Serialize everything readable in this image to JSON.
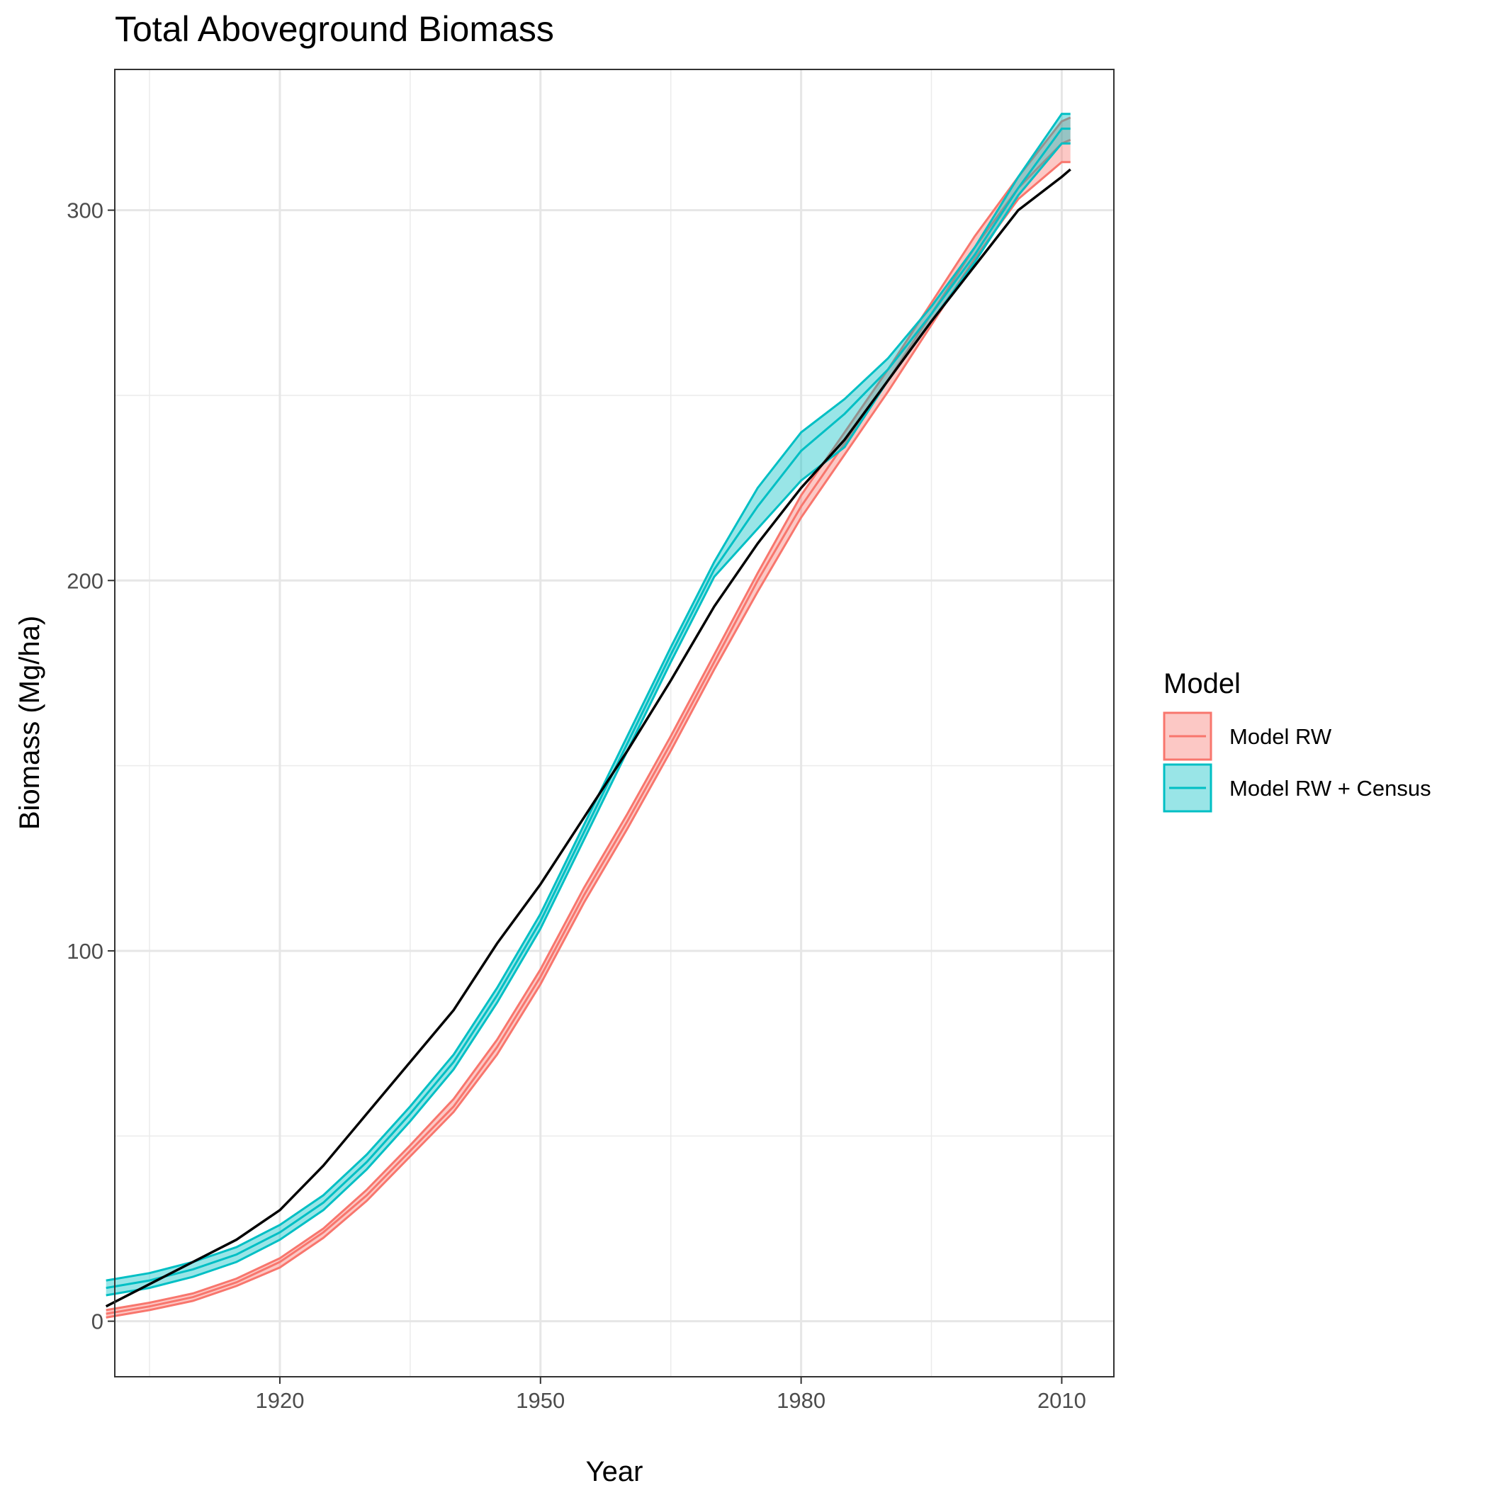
{
  "chart_data": {
    "type": "area",
    "title": "Total Aboveground Biomass",
    "xlabel": "Year",
    "ylabel": "Biomass (Mg/ha)",
    "xlim": [
      1901,
      2016
    ],
    "ylim": [
      -15,
      338
    ],
    "x_ticks": [
      1920,
      1950,
      1980,
      2010
    ],
    "x_minor_ticks": [
      1905,
      1935,
      1965,
      1995
    ],
    "y_ticks": [
      0,
      100,
      200,
      300
    ],
    "y_minor_ticks": [
      50,
      150,
      250
    ],
    "grid": true,
    "legend_title": "Model",
    "legend_position": "right",
    "x": [
      1900,
      1905,
      1910,
      1915,
      1920,
      1925,
      1930,
      1935,
      1940,
      1945,
      1950,
      1955,
      1960,
      1965,
      1970,
      1975,
      1980,
      1985,
      1990,
      1995,
      2000,
      2005,
      2010,
      2011
    ],
    "series": [
      {
        "name": "Model RW",
        "color": "#F8766D",
        "fill": "#F8766D",
        "mean": [
          2,
          4,
          6.5,
          10.5,
          16,
          24,
          34,
          46,
          58,
          74,
          93,
          115,
          135,
          156,
          178,
          200,
          220,
          237,
          254,
          272,
          290,
          306,
          318,
          319
        ],
        "lower": [
          1,
          3,
          5.5,
          9.5,
          14.5,
          22.5,
          32.5,
          44.5,
          56.5,
          72,
          91,
          113,
          133,
          154,
          176,
          197,
          217,
          234,
          251,
          269,
          287,
          303,
          313,
          313
        ],
        "upper": [
          3,
          5,
          7.5,
          11.5,
          17,
          25,
          35.5,
          47.5,
          60,
          76,
          95,
          117,
          137,
          158,
          180,
          202,
          223,
          240,
          257,
          275,
          293,
          309,
          324,
          325
        ]
      },
      {
        "name": "Model RW + Census",
        "color": "#00BFC4",
        "fill": "#00BFC4",
        "mean": [
          9,
          11,
          14,
          18,
          24,
          32,
          43,
          56,
          70,
          88,
          108,
          132,
          156,
          180,
          203,
          220,
          235,
          245,
          257,
          272,
          288,
          306,
          322,
          322
        ],
        "lower": [
          7,
          9,
          12,
          16,
          22,
          30,
          41,
          54,
          68,
          86,
          106,
          130,
          154,
          178,
          201,
          214,
          227,
          236,
          254,
          270,
          286,
          304,
          318,
          318
        ],
        "upper": [
          11,
          13,
          16,
          20,
          26,
          34,
          45,
          58,
          72,
          90,
          110,
          134,
          158,
          182,
          205,
          225,
          240,
          249,
          260,
          274,
          290,
          309,
          326,
          326
        ]
      },
      {
        "name": "",
        "color": "#000000",
        "values": [
          4,
          10,
          16,
          22,
          30,
          42,
          56,
          70,
          84,
          102,
          118,
          136,
          154,
          173,
          193,
          210,
          225,
          238,
          254,
          270,
          285,
          300,
          309,
          311
        ]
      }
    ]
  }
}
